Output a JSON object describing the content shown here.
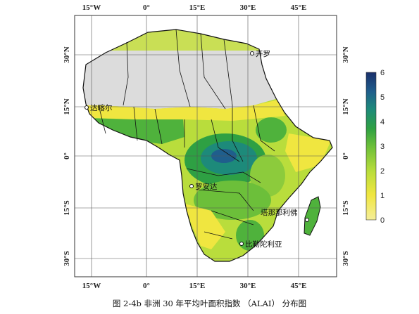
{
  "caption": "图 2-4b 非洲 30 年平均叶面积指数 （ALAI） 分布图",
  "axes": {
    "lon_top": [
      "15°W",
      "0°",
      "15°E",
      "30°E",
      "45°E"
    ],
    "lon_bottom": [
      "15°W",
      "0°",
      "15°E",
      "30°E",
      "45°E"
    ],
    "lat_left": [
      "30°N",
      "15°N",
      "0°",
      "15°S",
      "30°S"
    ],
    "lat_right": [
      "30°N",
      "15°N",
      "0°",
      "15°S",
      "30°S"
    ]
  },
  "cities": [
    {
      "name": "开罗",
      "lon": 31.2,
      "lat": 30.0
    },
    {
      "name": "达喀尔",
      "lon": -17.4,
      "lat": 14.7
    },
    {
      "name": "罗安达",
      "lon": 13.2,
      "lat": -8.8
    },
    {
      "name": "塔那那利佛",
      "lon": 47.5,
      "lat": -18.9
    },
    {
      "name": "比勒陀利亚",
      "lon": 28.2,
      "lat": -25.7
    }
  ],
  "colorbar": {
    "ticks": [
      "6",
      "5",
      "4",
      "3",
      "2",
      "1",
      "0"
    ],
    "colors": [
      "#1a2f6b",
      "#1f5e8c",
      "#1d8a7a",
      "#2ea043",
      "#6cbf3a",
      "#b9dd3c",
      "#f0e640",
      "#f5ee9a"
    ]
  },
  "legend_colors": {
    "no_data": "#dcdcdc",
    "grid": "#555555",
    "border": "#111111"
  }
}
